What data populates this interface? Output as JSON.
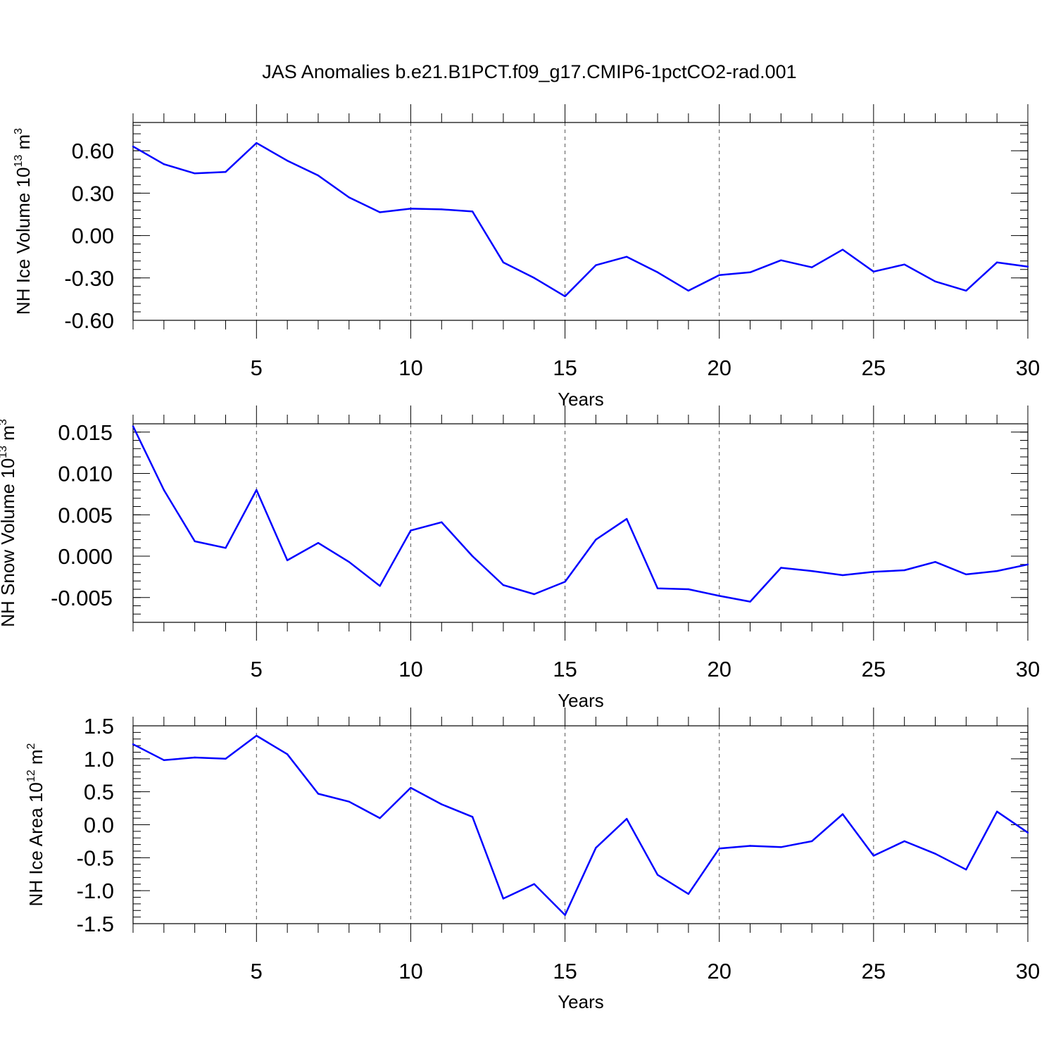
{
  "title": "JAS Anomalies b.e21.B1PCT.f09_g17.CMIP6-1pctCO2-rad.001",
  "colors": {
    "line": "#0000ff",
    "axis": "#000000",
    "grid": "#555555"
  },
  "chart_data": [
    {
      "type": "line",
      "id": "ice-volume",
      "ylabel_main": "NH Ice Volume 10",
      "ylabel_exp": "13",
      "ylabel_unit": " m",
      "ylabel_unit_exp": "3",
      "xlabel": "Years",
      "xlim": [
        1,
        30
      ],
      "ylim": [
        -0.6,
        0.8
      ],
      "x_major_ticks": [
        5,
        10,
        15,
        20,
        25,
        30
      ],
      "x_tick_labels": [
        "5",
        "10",
        "15",
        "20",
        "25",
        "30"
      ],
      "y_major_ticks": [
        -0.6,
        -0.3,
        0.0,
        0.3,
        0.6
      ],
      "y_tick_labels": [
        "-0.60",
        "-0.30",
        "0.00",
        "0.30",
        "0.60"
      ],
      "y_minor_step": 0.06,
      "x": [
        1,
        2,
        3,
        4,
        5,
        6,
        7,
        8,
        9,
        10,
        11,
        12,
        13,
        14,
        15,
        16,
        17,
        18,
        19,
        20,
        21,
        22,
        23,
        24,
        25,
        26,
        27,
        28,
        29,
        30
      ],
      "values": [
        0.63,
        0.505,
        0.44,
        0.45,
        0.655,
        0.53,
        0.425,
        0.27,
        0.165,
        0.19,
        0.185,
        0.17,
        -0.19,
        -0.3,
        -0.43,
        -0.21,
        -0.15,
        -0.26,
        -0.39,
        -0.28,
        -0.26,
        -0.175,
        -0.225,
        -0.1,
        -0.255,
        -0.205,
        -0.325,
        -0.39,
        -0.19,
        -0.22
      ]
    },
    {
      "type": "line",
      "id": "snow-volume",
      "ylabel_main": "NH Snow Volume 10",
      "ylabel_exp": "13",
      "ylabel_unit": " m",
      "ylabel_unit_exp": "3",
      "xlabel": "Years",
      "xlim": [
        1,
        30
      ],
      "ylim": [
        -0.008,
        0.016
      ],
      "x_major_ticks": [
        5,
        10,
        15,
        20,
        25,
        30
      ],
      "x_tick_labels": [
        "5",
        "10",
        "15",
        "20",
        "25",
        "30"
      ],
      "y_major_ticks": [
        -0.005,
        0.0,
        0.005,
        0.01,
        0.015
      ],
      "y_tick_labels": [
        "-0.005",
        "0.000",
        "0.005",
        "0.010",
        "0.015"
      ],
      "y_minor_step": 0.001,
      "x": [
        1,
        2,
        3,
        4,
        5,
        6,
        7,
        8,
        9,
        10,
        11,
        12,
        13,
        14,
        15,
        16,
        17,
        18,
        19,
        20,
        21,
        22,
        23,
        24,
        25,
        26,
        27,
        28,
        29,
        30
      ],
      "values": [
        0.0157,
        0.008,
        0.0018,
        0.001,
        0.008,
        -0.0005,
        0.0016,
        -0.0007,
        -0.0036,
        0.0031,
        0.0041,
        0.0,
        -0.0035,
        -0.0046,
        -0.0031,
        0.002,
        0.0045,
        -0.0039,
        -0.004,
        -0.0048,
        -0.0055,
        -0.0014,
        -0.0018,
        -0.0023,
        -0.0019,
        -0.0017,
        -0.0007,
        -0.0022,
        -0.0018,
        -0.001
      ]
    },
    {
      "type": "line",
      "id": "ice-area",
      "ylabel_main": "NH Ice Area 10",
      "ylabel_exp": "12",
      "ylabel_unit": " m",
      "ylabel_unit_exp": "2",
      "xlabel": "Years",
      "xlim": [
        1,
        30
      ],
      "ylim": [
        -1.5,
        1.5
      ],
      "x_major_ticks": [
        5,
        10,
        15,
        20,
        25,
        30
      ],
      "x_tick_labels": [
        "5",
        "10",
        "15",
        "20",
        "25",
        "30"
      ],
      "y_major_ticks": [
        -1.5,
        -1.0,
        -0.5,
        0.0,
        0.5,
        1.0,
        1.5
      ],
      "y_tick_labels": [
        "-1.5",
        "-1.0",
        "-0.5",
        "0.0",
        "0.5",
        "1.0",
        "1.5"
      ],
      "y_minor_step": 0.1,
      "x": [
        1,
        2,
        3,
        4,
        5,
        6,
        7,
        8,
        9,
        10,
        11,
        12,
        13,
        14,
        15,
        16,
        17,
        18,
        19,
        20,
        21,
        22,
        23,
        24,
        25,
        26,
        27,
        28,
        29,
        30
      ],
      "values": [
        1.22,
        0.98,
        1.02,
        1.0,
        1.35,
        1.07,
        0.47,
        0.35,
        0.1,
        0.56,
        0.31,
        0.12,
        -1.12,
        -0.9,
        -1.37,
        -0.35,
        0.09,
        -0.76,
        -1.05,
        -0.36,
        -0.32,
        -0.34,
        -0.25,
        0.16,
        -0.47,
        -0.25,
        -0.44,
        -0.68,
        0.2,
        -0.12
      ]
    }
  ]
}
